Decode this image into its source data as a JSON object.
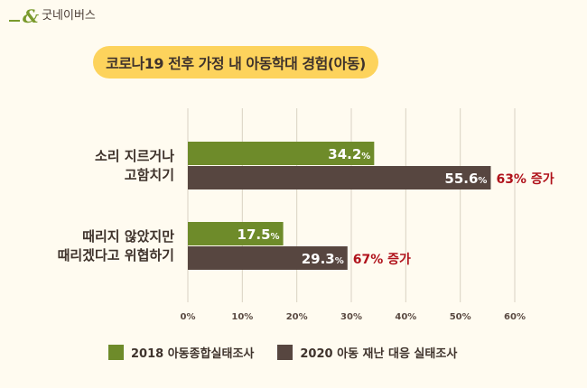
{
  "brand": {
    "logo_text": "굿네이버스",
    "logo_mark": "&"
  },
  "chart_data": {
    "type": "bar",
    "orientation": "horizontal",
    "title": "코로나19 전후 가정 내 아동학대 경험(아동)",
    "categories": [
      [
        "소리 지르거나",
        "고함치기"
      ],
      [
        "때리지 않았지만",
        "때리겠다고 위협하기"
      ]
    ],
    "series": [
      {
        "name": "2018 아동종합실태조사",
        "color": "#6e8b2a",
        "values": [
          34.2,
          17.5
        ]
      },
      {
        "name": "2020 아동 재난 대응 실태조사",
        "color": "#574640",
        "values": [
          55.6,
          29.3
        ]
      }
    ],
    "annotations": [
      "63% 증가",
      "67% 증가"
    ],
    "annotation_color": "#b0121b",
    "x_ticks": [
      "0%",
      "10%",
      "20%",
      "30%",
      "40%",
      "50%",
      "60%"
    ],
    "xlim": [
      0,
      60
    ],
    "grid": true,
    "legend_position": "bottom"
  }
}
